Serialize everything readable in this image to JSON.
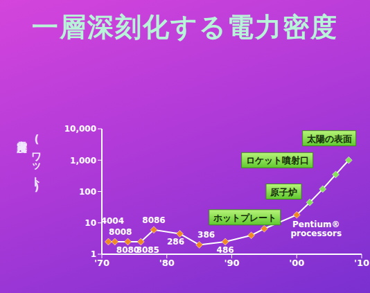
{
  "chart_data": {
    "type": "line",
    "title": "一層深刻化する電力密度",
    "y_label": "電力密度 (ワット)",
    "x": [
      1971,
      1972,
      1974,
      1976,
      1978,
      1982,
      1985,
      1989,
      1993,
      1995,
      2000,
      2002,
      2004,
      2006,
      2008
    ],
    "values": [
      2.5,
      2.5,
      2.5,
      2.5,
      6,
      4.5,
      2,
      2.5,
      4,
      6.5,
      18,
      45,
      120,
      350,
      1000
    ],
    "point_labels": [
      "4004",
      "8008",
      "8080",
      "8085",
      "8086",
      "286",
      "386",
      "486",
      null,
      null,
      "Pentium® processors",
      null,
      null,
      null,
      null
    ],
    "color": "#ffffff",
    "colors": [
      "#f08a24",
      "#f08a24",
      "#f08a24",
      "#f08a24",
      "#f08a24",
      "#f08a24",
      "#f08a24",
      "#f08a24",
      "#f08a24",
      "#f08a24",
      "#f08a24",
      "#86e25a",
      "#86e25a",
      "#86e25a",
      "#86e25a"
    ],
    "marker": "diamond",
    "log": "y",
    "grid": false,
    "xlim": [
      1970,
      2010
    ],
    "xticks": [
      {
        "value": 1970,
        "label": "'70"
      },
      {
        "value": 1980,
        "label": "'80"
      },
      {
        "value": 1990,
        "label": "'90"
      },
      {
        "value": 2000,
        "label": "'00"
      },
      {
        "value": 2010,
        "label": "'10"
      }
    ],
    "ylim": [
      1,
      10000
    ],
    "yticks": [
      1,
      10,
      100,
      {
        "value": 1000,
        "label": "1,000"
      },
      {
        "value": 10000,
        "label": "10,000"
      }
    ],
    "annotations": [
      {
        "text": "ホットプレート",
        "x": 1992,
        "y": 15
      },
      {
        "text": "原子炉",
        "x": 1998,
        "y": 100
      },
      {
        "text": "ロケット噴射口",
        "x": 1997,
        "y": 1000
      },
      {
        "text": "太陽の表面",
        "x": 2005,
        "y": 5000
      }
    ]
  }
}
